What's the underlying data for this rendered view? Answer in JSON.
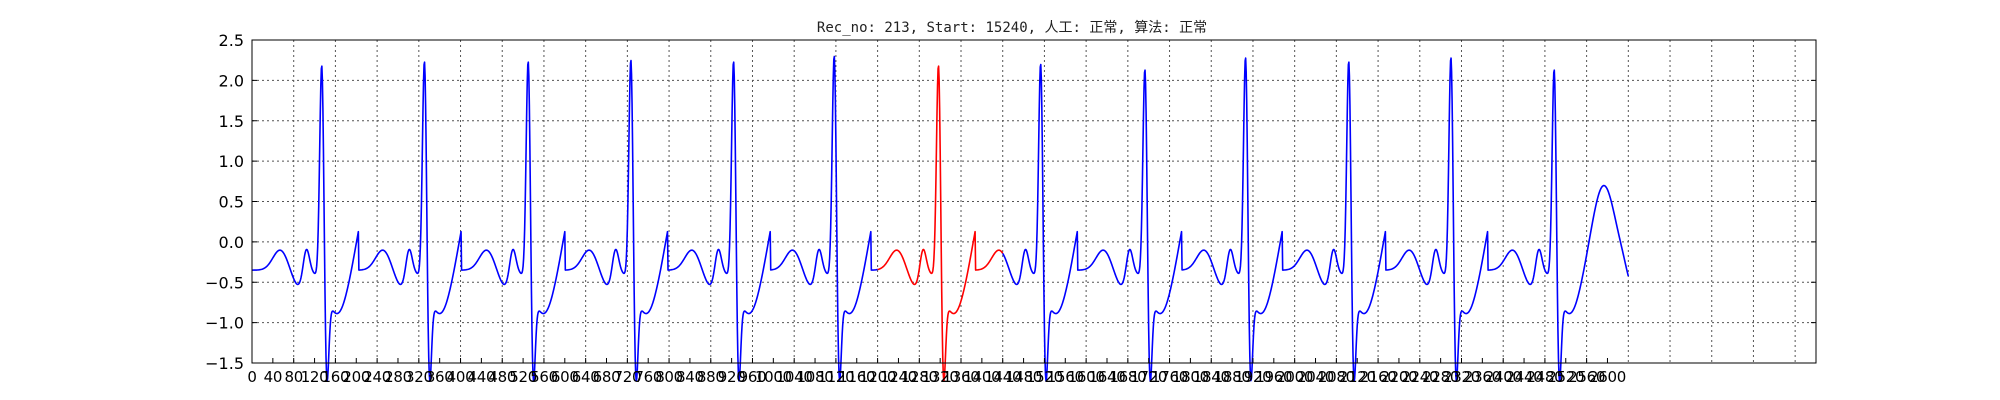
{
  "chart_data": {
    "type": "line",
    "title": "Rec_no: 213, Start: 15240, 人工: 正常, 算法: 正常",
    "xlabel": "",
    "ylabel": "",
    "xlim": [
      0,
      3000
    ],
    "ylim": [
      -1.5,
      2.5
    ],
    "grid": true,
    "y_ticks": [
      -1.5,
      -1.0,
      -0.5,
      0.0,
      0.5,
      1.0,
      1.5,
      2.0,
      2.5
    ],
    "y_tick_labels": [
      "−1.5",
      "−1.0",
      "−0.5",
      "0.0",
      "0.5",
      "1.0",
      "1.5",
      "2.0",
      "2.5"
    ],
    "x_ticks": [
      0,
      40,
      80,
      120,
      160,
      200,
      240,
      280,
      320,
      360,
      400,
      440,
      480,
      520,
      560,
      600,
      640,
      680,
      720,
      760,
      800,
      840,
      880,
      920,
      960,
      1000,
      1040,
      1080,
      1120,
      1160,
      1200,
      1240,
      1280,
      1320,
      1360,
      1400,
      1440,
      1480,
      1520,
      1560,
      1600,
      1640,
      1680,
      1720,
      1760,
      1800,
      1840,
      1880,
      1920,
      1960,
      2000,
      2040,
      2080,
      2120,
      2160,
      2200,
      2240,
      2280,
      2320,
      2360,
      2400,
      2440,
      2480,
      2520,
      2560,
      2600
    ],
    "x_tick_labels": [
      "0",
      "40",
      "80",
      "120",
      "160",
      "200",
      "240",
      "280",
      "320",
      "360",
      "400",
      "440",
      "480",
      "520",
      "560",
      "600",
      "640",
      "680",
      "720",
      "760",
      "800",
      "840",
      "880",
      "920",
      "960",
      "1000",
      "1040",
      "1080",
      "1120",
      "1160",
      "1200",
      "1240",
      "1280",
      "1320",
      "1360",
      "1400",
      "1440",
      "1480",
      "1520",
      "1560",
      "1600",
      "1640",
      "1680",
      "1720",
      "1760",
      "1800",
      "1840",
      "1880",
      "1920",
      "1960",
      "2000",
      "2040",
      "2080",
      "2120",
      "2160",
      "2200",
      "2240",
      "2280",
      "2320",
      "2360",
      "2400",
      "2440",
      "2480",
      "2520",
      "2560",
      "2600"
    ],
    "x_grid": [
      0,
      80,
      160,
      240,
      320,
      400,
      480,
      560,
      640,
      720,
      800,
      880,
      960,
      1040,
      1120,
      1200,
      1280,
      1360,
      1440,
      1520,
      1600,
      1680,
      1760,
      1840,
      1920,
      2000,
      2080,
      2160,
      2240,
      2320,
      2400,
      2480,
      2560,
      2640,
      2720,
      2800,
      2880,
      2960
    ],
    "beat_peaks": [
      {
        "x": 134,
        "r": 2.05
      },
      {
        "x": 331,
        "r": 2.1
      },
      {
        "x": 530,
        "r": 2.1
      },
      {
        "x": 727,
        "r": 2.12
      },
      {
        "x": 924,
        "r": 2.1
      },
      {
        "x": 1117,
        "r": 2.17
      },
      {
        "x": 1317,
        "r": 2.05
      },
      {
        "x": 1513,
        "r": 2.07
      },
      {
        "x": 1713,
        "r": 2.0
      },
      {
        "x": 1906,
        "r": 2.15
      },
      {
        "x": 2104,
        "r": 2.1
      },
      {
        "x": 2300,
        "r": 2.15
      },
      {
        "x": 2498,
        "r": 2.0
      }
    ],
    "signal_x_end": 2640,
    "highlight_range": [
      1200,
      1440
    ],
    "colors": {
      "signal": "#0000ff",
      "highlight": "#ff0000"
    }
  }
}
